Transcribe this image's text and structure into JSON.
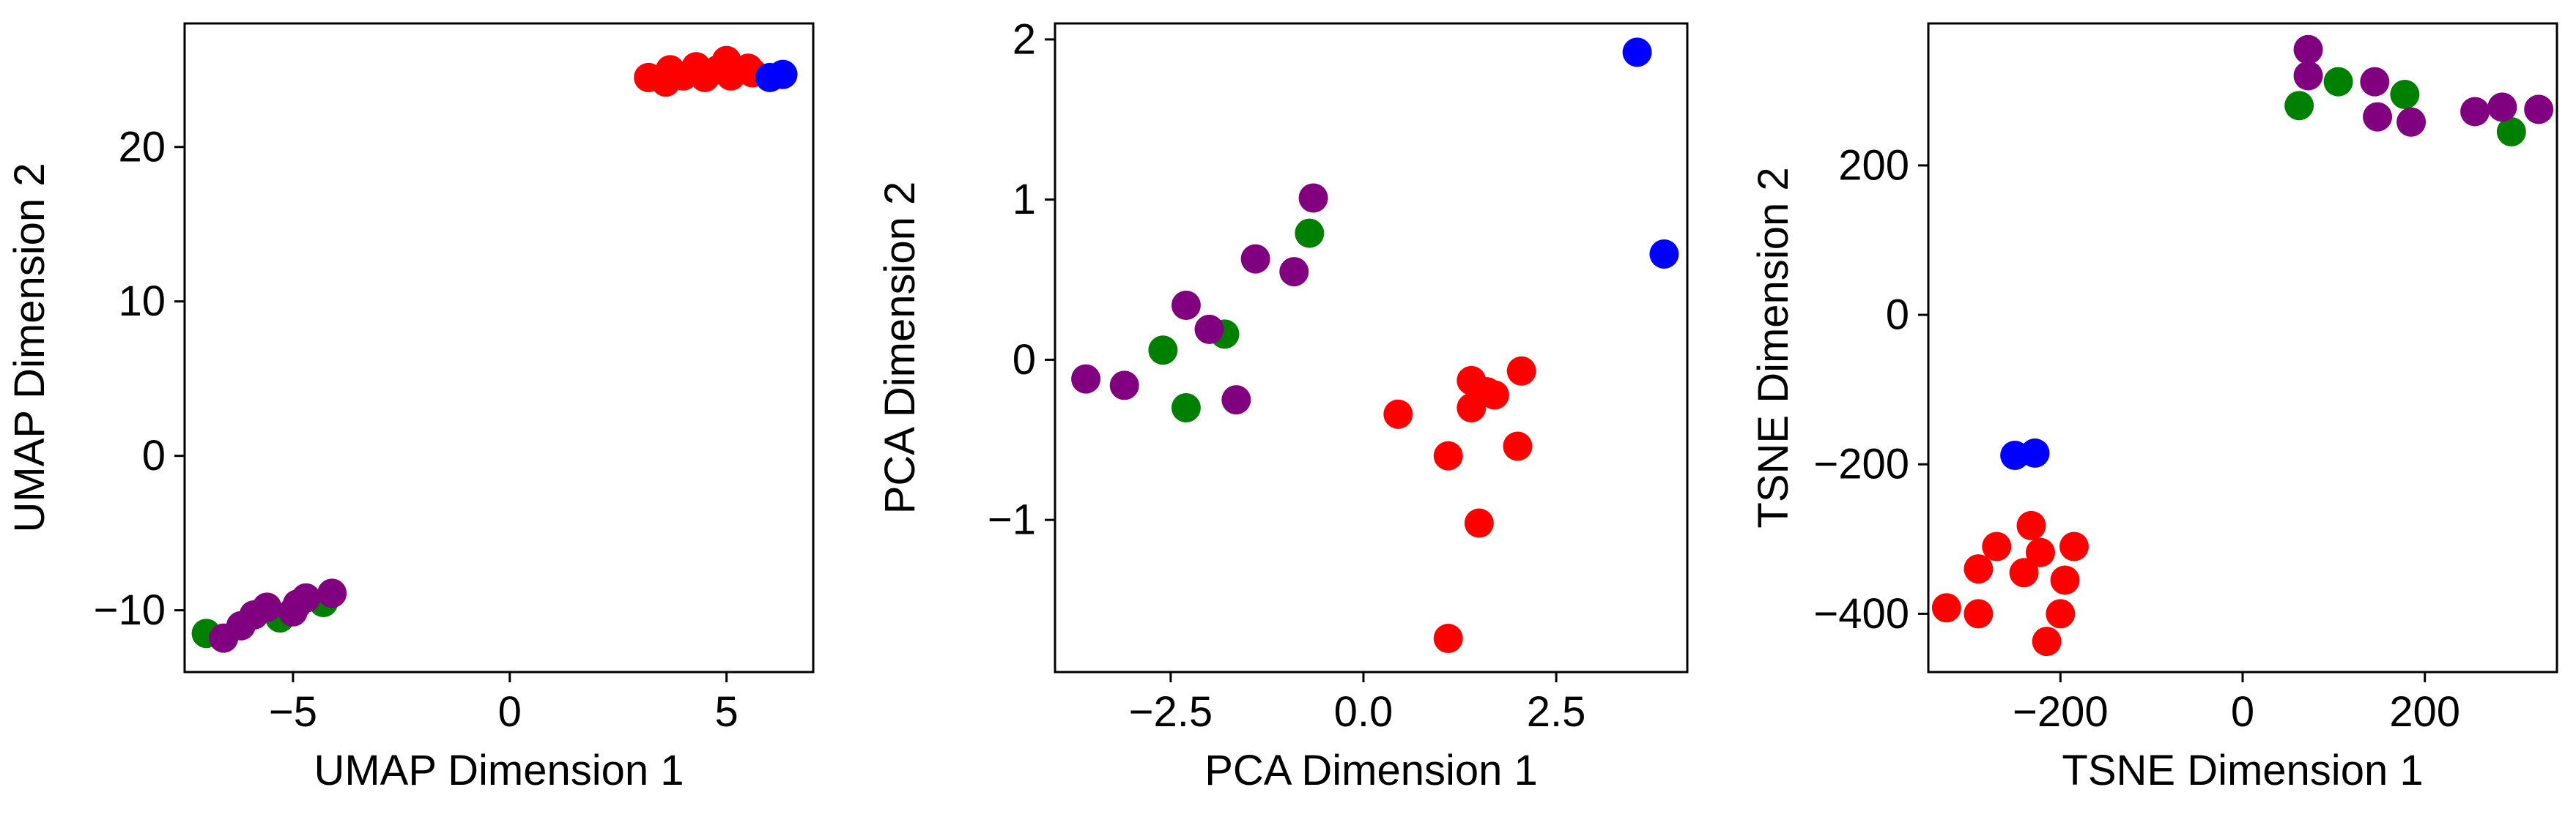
{
  "colors": {
    "red": "#ff0000",
    "blue": "#0000ff",
    "green": "#008000",
    "purple": "#800080"
  },
  "chart_data": [
    {
      "type": "scatter",
      "xlabel": "UMAP Dimension 1",
      "ylabel": "UMAP Dimension 2",
      "xlim": [
        -7.5,
        7.0
      ],
      "ylim": [
        -14.0,
        28.0
      ],
      "xticks": [
        -5,
        0,
        5
      ],
      "xtick_labels": [
        "−5",
        "0",
        "5"
      ],
      "yticks": [
        -10,
        0,
        10,
        20
      ],
      "ytick_labels": [
        "−10",
        "0",
        "10",
        "20"
      ],
      "grid": false,
      "series": [
        {
          "color": "red",
          "points": [
            [
              3.2,
              24.5
            ],
            [
              3.6,
              24.2
            ],
            [
              3.7,
              25.0
            ],
            [
              4.0,
              24.6
            ],
            [
              4.3,
              25.2
            ],
            [
              4.5,
              24.5
            ],
            [
              4.8,
              25.0
            ],
            [
              5.0,
              25.6
            ],
            [
              5.1,
              24.6
            ],
            [
              5.5,
              25.1
            ],
            [
              5.6,
              24.8
            ]
          ]
        },
        {
          "color": "blue",
          "points": [
            [
              6.0,
              24.5
            ],
            [
              6.3,
              24.7
            ]
          ]
        },
        {
          "color": "green",
          "points": [
            [
              -7.0,
              -11.5
            ],
            [
              -5.3,
              -10.5
            ],
            [
              -4.3,
              -9.5
            ]
          ]
        },
        {
          "color": "purple",
          "points": [
            [
              -6.6,
              -11.8
            ],
            [
              -6.2,
              -11.0
            ],
            [
              -5.9,
              -10.3
            ],
            [
              -5.6,
              -9.8
            ],
            [
              -5.0,
              -10.1
            ],
            [
              -4.9,
              -9.6
            ],
            [
              -4.7,
              -9.2
            ],
            [
              -4.1,
              -8.9
            ]
          ]
        }
      ]
    },
    {
      "type": "scatter",
      "xlabel": "PCA Dimension 1",
      "ylabel": "PCA Dimension 2",
      "xlim": [
        -4.0,
        4.2
      ],
      "ylim": [
        -1.95,
        2.1
      ],
      "xticks": [
        -2.5,
        0.0,
        2.5
      ],
      "xtick_labels": [
        "−2.5",
        "0.0",
        "2.5"
      ],
      "yticks": [
        -1,
        0,
        1,
        2
      ],
      "ytick_labels": [
        "−1",
        "0",
        "1",
        "2"
      ],
      "grid": false,
      "series": [
        {
          "color": "red",
          "points": [
            [
              0.45,
              -0.34
            ],
            [
              1.1,
              -0.6
            ],
            [
              1.1,
              -1.74
            ],
            [
              1.4,
              -0.13
            ],
            [
              1.4,
              -0.3
            ],
            [
              1.5,
              -1.02
            ],
            [
              1.6,
              -0.2
            ],
            [
              1.7,
              -0.22
            ],
            [
              2.0,
              -0.54
            ],
            [
              2.05,
              -0.07
            ]
          ]
        },
        {
          "color": "blue",
          "points": [
            [
              3.55,
              1.92
            ],
            [
              3.9,
              0.66
            ]
          ]
        },
        {
          "color": "green",
          "points": [
            [
              -2.6,
              0.06
            ],
            [
              -2.3,
              -0.3
            ],
            [
              -1.8,
              0.16
            ],
            [
              -0.7,
              0.79
            ]
          ]
        },
        {
          "color": "purple",
          "points": [
            [
              -3.6,
              -0.12
            ],
            [
              -3.1,
              -0.16
            ],
            [
              -2.3,
              0.34
            ],
            [
              -2.0,
              0.19
            ],
            [
              -1.65,
              -0.25
            ],
            [
              -1.4,
              0.63
            ],
            [
              -0.9,
              0.55
            ],
            [
              -0.65,
              1.01
            ]
          ]
        }
      ]
    },
    {
      "type": "scatter",
      "xlabel": "TSNE Dimension 1",
      "ylabel": "TSNE Dimension 2",
      "xlim": [
        -345,
        345
      ],
      "ylim": [
        -478,
        390
      ],
      "xticks": [
        -200,
        0,
        200
      ],
      "xtick_labels": [
        "−200",
        "0",
        "200"
      ],
      "yticks": [
        -400,
        -200,
        0,
        200
      ],
      "ytick_labels": [
        "−400",
        "−200",
        "0",
        "200"
      ],
      "grid": false,
      "series": [
        {
          "color": "red",
          "points": [
            [
              -325,
              -392
            ],
            [
              -290,
              -340
            ],
            [
              -290,
              -400
            ],
            [
              -270,
              -310
            ],
            [
              -240,
              -345
            ],
            [
              -232,
              -282
            ],
            [
              -222,
              -318
            ],
            [
              -215,
              -437
            ],
            [
              -200,
              -400
            ],
            [
              -195,
              -355
            ],
            [
              -185,
              -310
            ]
          ]
        },
        {
          "color": "blue",
          "points": [
            [
              -250,
              -188
            ],
            [
              -228,
              -185
            ]
          ]
        },
        {
          "color": "green",
          "points": [
            [
              62,
              280
            ],
            [
              105,
              312
            ],
            [
              178,
              295
            ],
            [
              295,
              245
            ]
          ]
        },
        {
          "color": "purple",
          "points": [
            [
              72,
              355
            ],
            [
              72,
              320
            ],
            [
              145,
              312
            ],
            [
              148,
              265
            ],
            [
              185,
              258
            ],
            [
              255,
              272
            ],
            [
              285,
              278
            ],
            [
              325,
              275
            ]
          ]
        }
      ]
    }
  ]
}
